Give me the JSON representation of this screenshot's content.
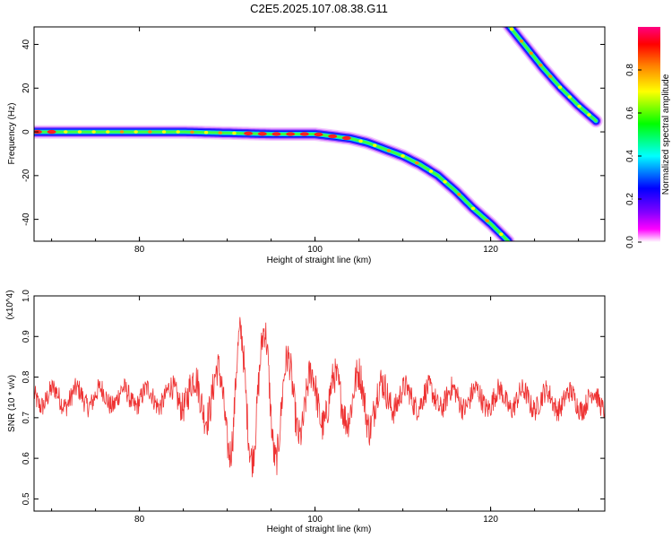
{
  "figure_title": "C2E5.2025.107.08.38.G11",
  "chart_data": [
    {
      "type": "heatmap",
      "xlabel": "Height of straight line (km)",
      "ylabel": "Frequency (Hz)",
      "xlim": [
        68,
        133
      ],
      "ylim": [
        -50,
        48
      ],
      "xticks": [
        80,
        100,
        120
      ],
      "yticks": [
        -40,
        -20,
        0,
        20,
        40
      ],
      "grid": false,
      "colorbar": {
        "label": "Normalized spectral amplitude",
        "range": [
          0,
          1
        ],
        "ticks": [
          "0.0",
          "0.2",
          "0.4",
          "0.6",
          "0.8"
        ],
        "tick_values": [
          0.0,
          0.2,
          0.4,
          0.6,
          0.8
        ],
        "colors": [
          "#ffffff",
          "#ff00ff",
          "#8000ff",
          "#0000ff",
          "#00ffff",
          "#00ff00",
          "#ffff00",
          "#ff8000",
          "#ff0000",
          "#ff0080"
        ]
      },
      "ridges": [
        {
          "x": [
            68,
            75,
            85,
            95,
            100,
            102,
            104,
            106,
            108,
            110,
            112,
            114,
            116,
            118,
            120,
            122
          ],
          "y": [
            0,
            0,
            0,
            -1,
            -1,
            -2,
            -3,
            -5,
            -8,
            -11,
            -15,
            -20,
            -27,
            -35,
            -42,
            -50
          ]
        },
        {
          "x": [
            122,
            124,
            126,
            128,
            130,
            132
          ],
          "y": [
            49,
            39,
            29,
            20,
            12,
            5
          ]
        }
      ]
    },
    {
      "type": "line",
      "xlabel": "Height of straight line (km)",
      "ylabel": "SNR (10 * v/v)",
      "y_multiplier": "(x10^4)",
      "xlim": [
        68,
        133
      ],
      "ylim": [
        0.47,
        1.0
      ],
      "xticks": [
        80,
        100,
        120
      ],
      "yticks": [
        0.5,
        0.6,
        0.7,
        0.8,
        0.9,
        1.0
      ],
      "grid": false,
      "series": [
        {
          "color": "#ee3333",
          "baseline": 0.75,
          "envelope": [
            [
              68,
              0.75,
              0.03
            ],
            [
              83,
              0.75,
              0.03
            ],
            [
              86,
              0.76,
              0.05
            ],
            [
              88,
              0.75,
              0.08
            ],
            [
              89.5,
              0.74,
              0.12
            ],
            [
              91,
              0.76,
              0.25
            ],
            [
              92,
              0.7,
              0.24
            ],
            [
              93.5,
              0.79,
              0.18
            ],
            [
              94.7,
              0.73,
              0.24
            ],
            [
              96.5,
              0.75,
              0.14
            ],
            [
              98,
              0.74,
              0.12
            ],
            [
              100,
              0.74,
              0.09
            ],
            [
              103,
              0.75,
              0.07
            ],
            [
              106,
              0.74,
              0.1
            ],
            [
              107.5,
              0.75,
              0.05
            ],
            [
              110,
              0.75,
              0.035
            ],
            [
              133,
              0.74,
              0.03
            ]
          ]
        }
      ]
    }
  ]
}
